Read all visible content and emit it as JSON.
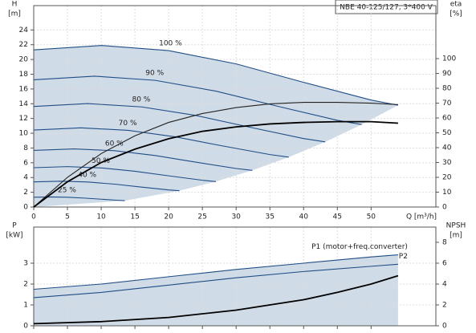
{
  "chart_data": [
    {
      "type": "line",
      "title": "NBE 40-125/127, 3*400 V",
      "y_label": [
        "H",
        "[m]"
      ],
      "y2_label": [
        "eta",
        "[%]"
      ],
      "x_label": "Q [m³/h]",
      "xlim": [
        0,
        59.6
      ],
      "xticks": [
        0,
        5,
        10,
        15,
        20,
        25,
        30,
        35,
        40,
        45,
        50
      ],
      "ylim": [
        0,
        27.3
      ],
      "yticks": [
        0,
        2,
        4,
        6,
        8,
        10,
        12,
        14,
        16,
        18,
        20,
        22,
        24
      ],
      "y2lim": [
        0,
        135.7
      ],
      "y2ticks": [
        0,
        10,
        20,
        30,
        40,
        50,
        60,
        70,
        80,
        90,
        100
      ],
      "grid": true,
      "series": [
        {
          "name": "100 %",
          "color": "#1f4e86",
          "x": [
            0,
            10,
            20,
            30,
            40,
            50,
            54
          ],
          "values": [
            21.3,
            21.9,
            21.2,
            19.4,
            16.9,
            14.5,
            13.8
          ]
        },
        {
          "name": "90 %",
          "color": "#1f4e86",
          "x": [
            0,
            9,
            18,
            27,
            36,
            45,
            48.6
          ],
          "values": [
            17.25,
            17.74,
            17.17,
            15.71,
            13.69,
            11.75,
            11.18
          ]
        },
        {
          "name": "80 %",
          "color": "#1f4e86",
          "x": [
            0,
            8,
            16,
            24,
            32,
            40,
            43.2
          ],
          "values": [
            13.63,
            14.02,
            13.57,
            12.42,
            10.82,
            9.28,
            8.83
          ]
        },
        {
          "name": "70 %",
          "color": "#1f4e86",
          "x": [
            0,
            7,
            14,
            21,
            28,
            35,
            37.8
          ],
          "values": [
            10.44,
            10.73,
            10.39,
            9.51,
            8.28,
            7.11,
            6.76
          ]
        },
        {
          "name": "60 %",
          "color": "#1f4e86",
          "x": [
            0,
            6,
            12,
            18,
            24,
            30,
            32.4
          ],
          "values": [
            7.67,
            7.88,
            7.63,
            6.98,
            6.08,
            5.22,
            4.97
          ]
        },
        {
          "name": "50 %",
          "color": "#1f4e86",
          "x": [
            0,
            5,
            10,
            15,
            20,
            25,
            27
          ],
          "values": [
            5.33,
            5.48,
            5.3,
            4.85,
            4.23,
            3.63,
            3.45
          ]
        },
        {
          "name": "40 %",
          "color": "#1f4e86",
          "x": [
            0,
            4,
            8,
            12,
            16,
            20,
            21.6
          ],
          "values": [
            3.41,
            3.5,
            3.39,
            3.1,
            2.7,
            2.32,
            2.21
          ]
        },
        {
          "name": "25 %",
          "color": "#1f4e86",
          "x": [
            0,
            2.5,
            5,
            7.5,
            10,
            12.5,
            13.5
          ],
          "values": [
            1.33,
            1.37,
            1.33,
            1.21,
            1.06,
            0.91,
            0.86
          ]
        },
        {
          "color": "#222222",
          "axis": "y2",
          "x": [
            0,
            5,
            10,
            15,
            20,
            25,
            30,
            35,
            40,
            45,
            50,
            54
          ],
          "values": [
            0,
            20,
            36,
            48,
            57,
            63,
            67,
            69.5,
            70.5,
            70.5,
            70,
            69
          ]
        },
        {
          "color": "#000000",
          "axis": "y2",
          "x": [
            0,
            5,
            10,
            15,
            20,
            25,
            30,
            35,
            40,
            45,
            50,
            54
          ],
          "values": [
            0,
            17,
            30,
            39,
            46,
            51,
            54,
            56,
            57,
            57.5,
            57.5,
            56.5
          ]
        }
      ]
    },
    {
      "type": "line",
      "y_label": [
        "P",
        "[kW]"
      ],
      "y2_label": [
        "NPSH",
        "[m]"
      ],
      "xlim": [
        0,
        59.6
      ],
      "xticks": [
        0,
        5,
        10,
        15,
        20,
        25,
        30,
        35,
        40,
        45,
        50
      ],
      "ylim": [
        0,
        4.73
      ],
      "yticks": [
        0,
        1,
        2,
        3
      ],
      "y2lim": [
        0,
        9.46
      ],
      "y2ticks": [
        0,
        2,
        4,
        6,
        8
      ],
      "grid": true,
      "series": [
        {
          "name": "P1 (motor+freq.converter)",
          "color": "#1f4e86",
          "x": [
            0,
            10,
            20,
            30,
            40,
            50,
            54
          ],
          "values": [
            1.75,
            2.0,
            2.35,
            2.7,
            3.0,
            3.3,
            3.4
          ]
        },
        {
          "name": "P2",
          "color": "#1f4e86",
          "x": [
            0,
            10,
            20,
            30,
            40,
            50,
            54
          ],
          "values": [
            1.35,
            1.6,
            1.95,
            2.3,
            2.6,
            2.85,
            2.95
          ]
        },
        {
          "color": "#000000",
          "axis": "y2",
          "x": [
            0,
            10,
            20,
            30,
            40,
            45,
            50,
            54
          ],
          "values": [
            0.2,
            0.4,
            0.8,
            1.5,
            2.5,
            3.2,
            4.0,
            4.8
          ]
        }
      ]
    }
  ]
}
